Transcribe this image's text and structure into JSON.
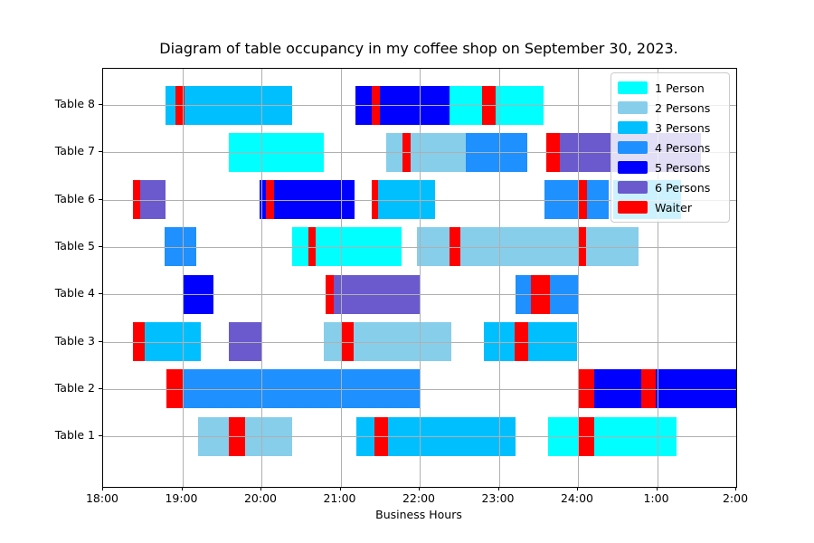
{
  "figure": {
    "title": "Diagram of table occupancy in my coffee shop on September 30, 2023."
  },
  "chart_data": {
    "type": "gantt",
    "title": "Diagram of table occupancy in my coffee shop on September 30, 2023.",
    "xlabel": "Business Hours",
    "x_range_hours": [
      18,
      26
    ],
    "grid": true,
    "grid_color": "#b0b0b0",
    "x_ticks": [
      {
        "hour": 18,
        "label": "18:00"
      },
      {
        "hour": 19,
        "label": "19:00"
      },
      {
        "hour": 20,
        "label": "20:00"
      },
      {
        "hour": 21,
        "label": "21:00"
      },
      {
        "hour": 22,
        "label": "22:00"
      },
      {
        "hour": 23,
        "label": "23:00"
      },
      {
        "hour": 24,
        "label": "24:00"
      },
      {
        "hour": 25,
        "label": "1:00"
      },
      {
        "hour": 26,
        "label": "2:00"
      }
    ],
    "y_rows_top_to_bottom": [
      "Table 8",
      "Table 7",
      "Table 6",
      "Table 5",
      "Table 4",
      "Table 3",
      "Table 2",
      "Table 1"
    ],
    "legend": {
      "position": "upper right",
      "entries": [
        {
          "label": "1 Person",
          "color": "#00FFFF"
        },
        {
          "label": "2 Persons",
          "color": "#87CEEB"
        },
        {
          "label": "3 Persons",
          "color": "#00BFFF"
        },
        {
          "label": "4 Persons",
          "color": "#1E90FF"
        },
        {
          "label": "5 Persons",
          "color": "#0000FF"
        },
        {
          "label": "6 Persons",
          "color": "#6A5ACD"
        },
        {
          "label": "Waiter",
          "color": "#FF0000"
        }
      ]
    },
    "party_colors": {
      "1": "#00FFFF",
      "2": "#87CEEB",
      "3": "#00BFFF",
      "4": "#1E90FF",
      "5": "#0000FF",
      "6": "#6A5ACD"
    },
    "waiter_color": "#FF0000",
    "segments": [
      {
        "table": "Table 8",
        "party_size": 3,
        "start_hour": 18.79,
        "end_hour": 20.39
      },
      {
        "table": "Table 8",
        "party_size": 5,
        "start_hour": 21.19,
        "end_hour": 22.38
      },
      {
        "table": "Table 8",
        "party_size": 1,
        "start_hour": 22.38,
        "end_hour": 23.57
      },
      {
        "table": "Table 7",
        "party_size": 1,
        "start_hour": 19.59,
        "end_hour": 20.79
      },
      {
        "table": "Table 7",
        "party_size": 2,
        "start_hour": 21.58,
        "end_hour": 22.58
      },
      {
        "table": "Table 7",
        "party_size": 4,
        "start_hour": 22.58,
        "end_hour": 23.36
      },
      {
        "table": "Table 7",
        "party_size": 6,
        "start_hour": 23.6,
        "end_hour": 25.55
      },
      {
        "table": "Table 6",
        "party_size": 6,
        "start_hour": 18.38,
        "end_hour": 18.79
      },
      {
        "table": "Table 6",
        "party_size": 5,
        "start_hour": 19.98,
        "end_hour": 21.18
      },
      {
        "table": "Table 6",
        "party_size": 3,
        "start_hour": 21.39,
        "end_hour": 22.19
      },
      {
        "table": "Table 6",
        "party_size": 4,
        "start_hour": 23.58,
        "end_hour": 24.39
      },
      {
        "table": "Table 6",
        "party_size": 3,
        "start_hour": 24.44,
        "end_hour": 25.3
      },
      {
        "table": "Table 5",
        "party_size": 4,
        "start_hour": 18.78,
        "end_hour": 19.18
      },
      {
        "table": "Table 5",
        "party_size": 1,
        "start_hour": 20.39,
        "end_hour": 21.77
      },
      {
        "table": "Table 5",
        "party_size": 2,
        "start_hour": 21.97,
        "end_hour": 24.76
      },
      {
        "table": "Table 4",
        "party_size": 5,
        "start_hour": 19.0,
        "end_hour": 19.39
      },
      {
        "table": "Table 4",
        "party_size": 6,
        "start_hour": 20.81,
        "end_hour": 22.01
      },
      {
        "table": "Table 4",
        "party_size": 4,
        "start_hour": 23.21,
        "end_hour": 24.0
      },
      {
        "table": "Table 3",
        "party_size": 3,
        "start_hour": 18.38,
        "end_hour": 19.23
      },
      {
        "table": "Table 3",
        "party_size": 6,
        "start_hour": 19.59,
        "end_hour": 20.0
      },
      {
        "table": "Table 3",
        "party_size": 2,
        "start_hour": 20.79,
        "end_hour": 22.4
      },
      {
        "table": "Table 3",
        "party_size": 3,
        "start_hour": 22.81,
        "end_hour": 23.99
      },
      {
        "table": "Table 2",
        "party_size": 4,
        "start_hour": 18.8,
        "end_hour": 22.01
      },
      {
        "table": "Table 2",
        "party_size": 5,
        "start_hour": 24.01,
        "end_hour": 26.0
      },
      {
        "table": "Table 1",
        "party_size": 2,
        "start_hour": 19.2,
        "end_hour": 20.39
      },
      {
        "table": "Table 1",
        "party_size": 3,
        "start_hour": 21.2,
        "end_hour": 23.21
      },
      {
        "table": "Table 1",
        "party_size": 1,
        "start_hour": 23.62,
        "end_hour": 25.24
      }
    ],
    "waiter_visits": [
      {
        "table": "Table 8",
        "start_hour": 18.91,
        "end_hour": 19.03
      },
      {
        "table": "Table 8",
        "start_hour": 21.39,
        "end_hour": 21.5
      },
      {
        "table": "Table 8",
        "start_hour": 22.79,
        "end_hour": 22.96
      },
      {
        "table": "Table 7",
        "start_hour": 21.78,
        "end_hour": 21.89
      },
      {
        "table": "Table 7",
        "start_hour": 23.6,
        "end_hour": 23.77
      },
      {
        "table": "Table 6",
        "start_hour": 18.38,
        "end_hour": 18.47
      },
      {
        "table": "Table 6",
        "start_hour": 20.06,
        "end_hour": 20.16
      },
      {
        "table": "Table 6",
        "start_hour": 21.39,
        "end_hour": 21.47
      },
      {
        "table": "Table 6",
        "start_hour": 24.0,
        "end_hour": 24.11
      },
      {
        "table": "Table 5",
        "start_hour": 20.59,
        "end_hour": 20.69
      },
      {
        "table": "Table 5",
        "start_hour": 22.38,
        "end_hour": 22.51
      },
      {
        "table": "Table 5",
        "start_hour": 24.0,
        "end_hour": 24.1
      },
      {
        "table": "Table 4",
        "start_hour": 20.81,
        "end_hour": 20.91
      },
      {
        "table": "Table 4",
        "start_hour": 23.41,
        "end_hour": 23.64
      },
      {
        "table": "Table 3",
        "start_hour": 18.38,
        "end_hour": 18.52
      },
      {
        "table": "Table 3",
        "start_hour": 21.02,
        "end_hour": 21.16
      },
      {
        "table": "Table 3",
        "start_hour": 23.2,
        "end_hour": 23.37
      },
      {
        "table": "Table 2",
        "start_hour": 18.8,
        "end_hour": 19.0
      },
      {
        "table": "Table 2",
        "start_hour": 24.01,
        "end_hour": 24.2
      },
      {
        "table": "Table 2",
        "start_hour": 24.8,
        "end_hour": 24.98
      },
      {
        "table": "Table 1",
        "start_hour": 19.59,
        "end_hour": 19.79
      },
      {
        "table": "Table 1",
        "start_hour": 21.43,
        "end_hour": 21.6
      },
      {
        "table": "Table 1",
        "start_hour": 24.01,
        "end_hour": 24.2
      }
    ]
  }
}
